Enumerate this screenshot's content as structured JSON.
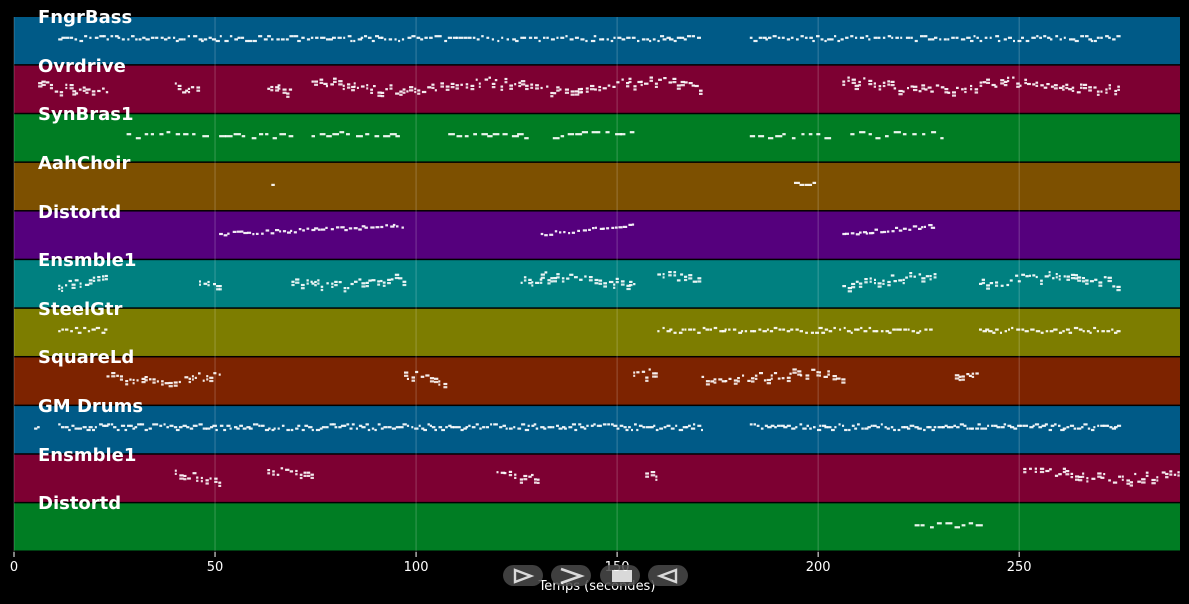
{
  "app": {
    "xlabel": "Temps (secondes)",
    "controls": [
      {
        "name": "play-icon",
        "symbol": "play"
      },
      {
        "name": "forward-icon",
        "symbol": "forward"
      },
      {
        "name": "stop-icon",
        "symbol": "stop"
      },
      {
        "name": "rewind-icon",
        "symbol": "rewind"
      }
    ]
  },
  "tracks": [
    {
      "label": "FngrBass",
      "color": "#005a87",
      "segments": [
        [
          11,
          171
        ],
        [
          183,
          275
        ]
      ],
      "pattern": "dense-low"
    },
    {
      "label": "Ovrdrive",
      "color": "#7d0032",
      "segments": [
        [
          6,
          23
        ],
        [
          40,
          46
        ],
        [
          63,
          69
        ],
        [
          74,
          171
        ],
        [
          206,
          275
        ]
      ],
      "pattern": "chords"
    },
    {
      "label": "SynBras1",
      "color": "#007d23",
      "segments": [
        [
          28,
          48
        ],
        [
          51,
          69
        ],
        [
          74,
          97
        ],
        [
          108,
          128
        ],
        [
          134,
          154
        ],
        [
          183,
          203
        ],
        [
          208,
          232
        ]
      ],
      "pattern": "sparse"
    },
    {
      "label": "AahChoir",
      "color": "#7d5000",
      "segments": [
        [
          64,
          65
        ],
        [
          194,
          200
        ]
      ],
      "pattern": "sparse"
    },
    {
      "label": "Distortd",
      "color": "#55007d",
      "segments": [
        [
          51,
          97
        ],
        [
          131,
          154
        ],
        [
          206,
          229
        ]
      ],
      "pattern": "rising"
    },
    {
      "label": "Ensmble1",
      "color": "#008080",
      "segments": [
        [
          11,
          23
        ],
        [
          46,
          51
        ],
        [
          69,
          74
        ],
        [
          74,
          97
        ],
        [
          126,
          131
        ],
        [
          131,
          154
        ],
        [
          160,
          171
        ],
        [
          206,
          229
        ],
        [
          240,
          275
        ]
      ],
      "pattern": "chords"
    },
    {
      "label": "SteelGtr",
      "color": "#7d7d00",
      "segments": [
        [
          11,
          23
        ],
        [
          160,
          229
        ],
        [
          240,
          275
        ]
      ],
      "pattern": "dense-low"
    },
    {
      "label": "SquareLd",
      "color": "#7d2300",
      "segments": [
        [
          23,
          51
        ],
        [
          97,
          108
        ],
        [
          154,
          160
        ],
        [
          171,
          206
        ],
        [
          234,
          240
        ]
      ],
      "pattern": "chords"
    },
    {
      "label": "GM Drums",
      "color": "#005a87",
      "segments": [
        [
          5,
          6
        ],
        [
          11,
          171
        ],
        [
          183,
          275
        ]
      ],
      "pattern": "drums"
    },
    {
      "label": "Ensmble1",
      "color": "#7d0032",
      "segments": [
        [
          40,
          51
        ],
        [
          63,
          74
        ],
        [
          120,
          131
        ],
        [
          157,
          160
        ],
        [
          251,
          290
        ]
      ],
      "pattern": "chords"
    },
    {
      "label": "Distortd",
      "color": "#007d23",
      "segments": [
        [
          224,
          240
        ]
      ],
      "pattern": "sparse"
    }
  ],
  "chart_data": {
    "type": "piano-roll",
    "xlabel": "Temps (secondes)",
    "xlim": [
      0,
      290
    ],
    "xticks": [
      0,
      50,
      100,
      150,
      200,
      250
    ],
    "grid": true
  }
}
